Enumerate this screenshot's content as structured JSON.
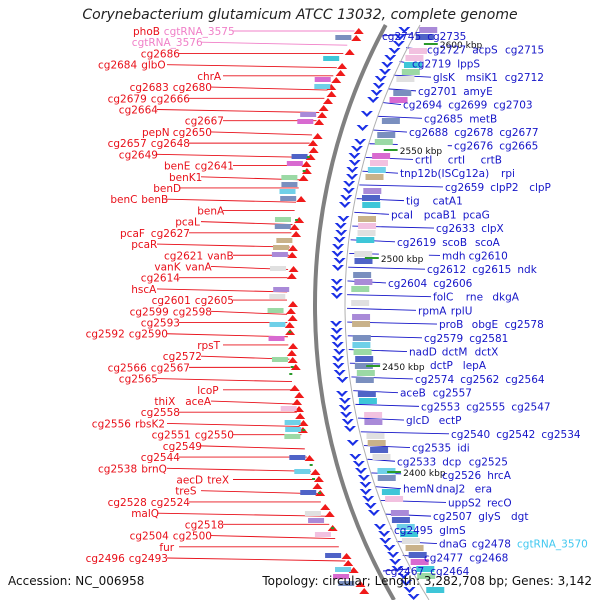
{
  "title": "Corynebacterium glutamicum ATCC 13032, complete genome",
  "footer": {
    "accession": "Accession: NC_006958",
    "topology": "Topology: circular; Length: 3,282,708 bp; Genes: 3,142"
  },
  "colors": {
    "left_label": "#e8101a",
    "right_label": "#1515c8",
    "rna_label": "#f080c8",
    "rna_right_label": "#40c8f0",
    "backbone": "#808080",
    "tick": "#2a9a2a"
  },
  "ticks": [
    {
      "label": "2600 kbp"
    },
    {
      "label": "2550 kbp"
    },
    {
      "label": "2500 kbp"
    },
    {
      "label": "2450 kbp"
    },
    {
      "label": "2400 kbp"
    }
  ],
  "left_labels": [
    {
      "text": "phoB",
      "kind": "gene"
    },
    {
      "text": "cgtRNA_3575",
      "kind": "rna"
    },
    {
      "text": "cgtRNA_3576",
      "kind": "rna"
    },
    {
      "text": "cg2686",
      "kind": "gene"
    },
    {
      "text": "cg2684",
      "kind": "gene"
    },
    {
      "text": "glbO",
      "kind": "gene"
    },
    {
      "text": "chrA",
      "kind": "gene"
    },
    {
      "text": "cg2683",
      "kind": "gene"
    },
    {
      "text": "cg2680",
      "kind": "gene"
    },
    {
      "text": "cg2679",
      "kind": "gene"
    },
    {
      "text": "cg2666",
      "kind": "gene"
    },
    {
      "text": "cg2664",
      "kind": "gene"
    },
    {
      "text": "cg2667",
      "kind": "gene"
    },
    {
      "text": "pepN",
      "kind": "gene"
    },
    {
      "text": "cg2650",
      "kind": "gene"
    },
    {
      "text": "cg2657",
      "kind": "gene"
    },
    {
      "text": "cg2648",
      "kind": "gene"
    },
    {
      "text": "cg2649",
      "kind": "gene"
    },
    {
      "text": "benE",
      "kind": "gene"
    },
    {
      "text": "cg2641",
      "kind": "gene"
    },
    {
      "text": "benK1",
      "kind": "gene"
    },
    {
      "text": "benD",
      "kind": "gene"
    },
    {
      "text": "benC",
      "kind": "gene"
    },
    {
      "text": "benB",
      "kind": "gene"
    },
    {
      "text": "benA",
      "kind": "gene"
    },
    {
      "text": "pcaL",
      "kind": "gene"
    },
    {
      "text": "pcaF",
      "kind": "gene"
    },
    {
      "text": "cg2627",
      "kind": "gene"
    },
    {
      "text": "pcaR",
      "kind": "gene"
    },
    {
      "text": "cg2621",
      "kind": "gene"
    },
    {
      "text": "vanB",
      "kind": "gene"
    },
    {
      "text": "vanK",
      "kind": "gene"
    },
    {
      "text": "vanA",
      "kind": "gene"
    },
    {
      "text": "cg2614",
      "kind": "gene"
    },
    {
      "text": "hscA",
      "kind": "gene"
    },
    {
      "text": "cg2601",
      "kind": "gene"
    },
    {
      "text": "cg2605",
      "kind": "gene"
    },
    {
      "text": "cg2599",
      "kind": "gene"
    },
    {
      "text": "cg2598",
      "kind": "gene"
    },
    {
      "text": "cg2593",
      "kind": "gene"
    },
    {
      "text": "cg2592",
      "kind": "gene"
    },
    {
      "text": "cg2590",
      "kind": "gene"
    },
    {
      "text": "rpsT",
      "kind": "gene"
    },
    {
      "text": "cg2572",
      "kind": "gene"
    },
    {
      "text": "cg2566",
      "kind": "gene"
    },
    {
      "text": "cg2567",
      "kind": "gene"
    },
    {
      "text": "cg2565",
      "kind": "gene"
    },
    {
      "text": "lcoP",
      "kind": "gene"
    },
    {
      "text": "thiX",
      "kind": "gene"
    },
    {
      "text": "aceA",
      "kind": "gene"
    },
    {
      "text": "cg2558",
      "kind": "gene"
    },
    {
      "text": "cg2556",
      "kind": "gene"
    },
    {
      "text": "rbsK2",
      "kind": "gene"
    },
    {
      "text": "cg2551",
      "kind": "gene"
    },
    {
      "text": "cg2550",
      "kind": "gene"
    },
    {
      "text": "cg2549",
      "kind": "gene"
    },
    {
      "text": "cg2544",
      "kind": "gene"
    },
    {
      "text": "cg2538",
      "kind": "gene"
    },
    {
      "text": "brnQ",
      "kind": "gene"
    },
    {
      "text": "aecD",
      "kind": "gene"
    },
    {
      "text": "treX",
      "kind": "gene"
    },
    {
      "text": "treS",
      "kind": "gene"
    },
    {
      "text": "cg2528",
      "kind": "gene"
    },
    {
      "text": "cg2524",
      "kind": "gene"
    },
    {
      "text": "malQ",
      "kind": "gene"
    },
    {
      "text": "cg2518",
      "kind": "gene"
    },
    {
      "text": "cg2504",
      "kind": "gene"
    },
    {
      "text": "cg2500",
      "kind": "gene"
    },
    {
      "text": "fur",
      "kind": "gene"
    },
    {
      "text": "cg2496",
      "kind": "gene"
    },
    {
      "text": "cg2493",
      "kind": "gene"
    }
  ],
  "right_labels": [
    {
      "text": "cg2745",
      "kind": "gene"
    },
    {
      "text": "cg2735",
      "kind": "gene"
    },
    {
      "text": "cg2727",
      "kind": "gene"
    },
    {
      "text": "acpS",
      "kind": "gene"
    },
    {
      "text": "cg2715",
      "kind": "gene"
    },
    {
      "text": "cg2719",
      "kind": "gene"
    },
    {
      "text": "lppS",
      "kind": "gene"
    },
    {
      "text": "glsK",
      "kind": "gene"
    },
    {
      "text": "msiK1",
      "kind": "gene"
    },
    {
      "text": "cg2712",
      "kind": "gene"
    },
    {
      "text": "cg2701",
      "kind": "gene"
    },
    {
      "text": "amyE",
      "kind": "gene"
    },
    {
      "text": "cg2694",
      "kind": "gene"
    },
    {
      "text": "cg2699",
      "kind": "gene"
    },
    {
      "text": "cg2703",
      "kind": "gene"
    },
    {
      "text": "cg2685",
      "kind": "gene"
    },
    {
      "text": "metB",
      "kind": "gene"
    },
    {
      "text": "cg2688",
      "kind": "gene"
    },
    {
      "text": "cg2678",
      "kind": "gene"
    },
    {
      "text": "cg2677",
      "kind": "gene"
    },
    {
      "text": "cg2676",
      "kind": "gene"
    },
    {
      "text": "cg2665",
      "kind": "gene"
    },
    {
      "text": "crtI",
      "kind": "gene"
    },
    {
      "text": "crtI",
      "kind": "gene"
    },
    {
      "text": "crtB",
      "kind": "gene"
    },
    {
      "text": "tnp12b(ISCg12a)",
      "kind": "gene"
    },
    {
      "text": "rpi",
      "kind": "gene"
    },
    {
      "text": "cg2659",
      "kind": "gene"
    },
    {
      "text": "clpP2",
      "kind": "gene"
    },
    {
      "text": "clpP",
      "kind": "gene"
    },
    {
      "text": "tig",
      "kind": "gene"
    },
    {
      "text": "catA1",
      "kind": "gene"
    },
    {
      "text": "pcaI",
      "kind": "gene"
    },
    {
      "text": "pcaB1",
      "kind": "gene"
    },
    {
      "text": "pcaG",
      "kind": "gene"
    },
    {
      "text": "cg2633",
      "kind": "gene"
    },
    {
      "text": "clpX",
      "kind": "gene"
    },
    {
      "text": "cg2619",
      "kind": "gene"
    },
    {
      "text": "scoB",
      "kind": "gene"
    },
    {
      "text": "scoA",
      "kind": "gene"
    },
    {
      "text": "mdh",
      "kind": "gene"
    },
    {
      "text": "cg2610",
      "kind": "gene"
    },
    {
      "text": "cg2612",
      "kind": "gene"
    },
    {
      "text": "cg2615",
      "kind": "gene"
    },
    {
      "text": "ndk",
      "kind": "gene"
    },
    {
      "text": "cg2604",
      "kind": "gene"
    },
    {
      "text": "cg2606",
      "kind": "gene"
    },
    {
      "text": "folC",
      "kind": "gene"
    },
    {
      "text": "rne",
      "kind": "gene"
    },
    {
      "text": "dkgA",
      "kind": "gene"
    },
    {
      "text": "rpmA",
      "kind": "gene"
    },
    {
      "text": "rplU",
      "kind": "gene"
    },
    {
      "text": "proB",
      "kind": "gene"
    },
    {
      "text": "obgE",
      "kind": "gene"
    },
    {
      "text": "cg2578",
      "kind": "gene"
    },
    {
      "text": "cg2579",
      "kind": "gene"
    },
    {
      "text": "cg2581",
      "kind": "gene"
    },
    {
      "text": "nadD",
      "kind": "gene"
    },
    {
      "text": "dctM",
      "kind": "gene"
    },
    {
      "text": "dctX",
      "kind": "gene"
    },
    {
      "text": "dctP",
      "kind": "gene"
    },
    {
      "text": "lepA",
      "kind": "gene"
    },
    {
      "text": "cg2574",
      "kind": "gene"
    },
    {
      "text": "cg2562",
      "kind": "gene"
    },
    {
      "text": "cg2564",
      "kind": "gene"
    },
    {
      "text": "aceB",
      "kind": "gene"
    },
    {
      "text": "cg2557",
      "kind": "gene"
    },
    {
      "text": "cg2553",
      "kind": "gene"
    },
    {
      "text": "cg2555",
      "kind": "gene"
    },
    {
      "text": "cg2547",
      "kind": "gene"
    },
    {
      "text": "glcD",
      "kind": "gene"
    },
    {
      "text": "ectP",
      "kind": "gene"
    },
    {
      "text": "cg2540",
      "kind": "gene"
    },
    {
      "text": "cg2542",
      "kind": "gene"
    },
    {
      "text": "cg2534",
      "kind": "gene"
    },
    {
      "text": "cg2535",
      "kind": "gene"
    },
    {
      "text": "idi",
      "kind": "gene"
    },
    {
      "text": "cg2533",
      "kind": "gene"
    },
    {
      "text": "dcp",
      "kind": "gene"
    },
    {
      "text": "cg2525",
      "kind": "gene"
    },
    {
      "text": "cg2526",
      "kind": "gene"
    },
    {
      "text": "hrcA",
      "kind": "gene"
    },
    {
      "text": "hemN",
      "kind": "gene"
    },
    {
      "text": "dnaJ2",
      "kind": "gene"
    },
    {
      "text": "era",
      "kind": "gene"
    },
    {
      "text": "uppS2",
      "kind": "gene"
    },
    {
      "text": "recO",
      "kind": "gene"
    },
    {
      "text": "cg2507",
      "kind": "gene"
    },
    {
      "text": "glyS",
      "kind": "gene"
    },
    {
      "text": "dgt",
      "kind": "gene"
    },
    {
      "text": "cg2495",
      "kind": "gene"
    },
    {
      "text": "glmS",
      "kind": "gene"
    },
    {
      "text": "dnaG",
      "kind": "gene"
    },
    {
      "text": "cg2478",
      "kind": "gene"
    },
    {
      "text": "cgtRNA_3570",
      "kind": "rna"
    },
    {
      "text": "cg2477",
      "kind": "gene"
    },
    {
      "text": "cg2468",
      "kind": "gene"
    },
    {
      "text": "cg2467",
      "kind": "gene"
    },
    {
      "text": "cg2464",
      "kind": "gene"
    }
  ]
}
